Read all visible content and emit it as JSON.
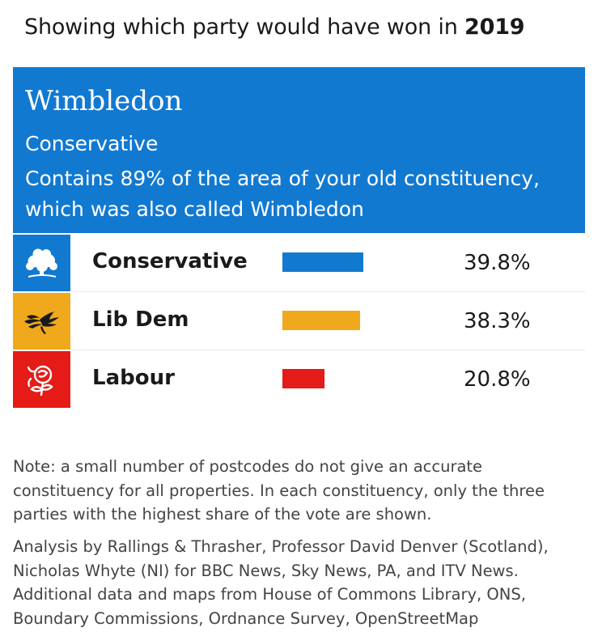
{
  "header": {
    "title_prefix": "Showing which party would have won in",
    "title_year": "2019"
  },
  "seat": {
    "name": "Wimbledon",
    "winner": "Conservative",
    "note": "Contains 89% of the area of your old constituency, which was also called Wimbledon",
    "banner_color": "#1279d1"
  },
  "chart_data": {
    "type": "bar",
    "categories": [
      "Conservative",
      "Lib Dem",
      "Labour"
    ],
    "values": [
      39.8,
      38.3,
      20.8
    ],
    "value_labels": [
      "39.8%",
      "38.3%",
      "20.8%"
    ],
    "colors": [
      "#1279d1",
      "#f0a81c",
      "#e41b17"
    ],
    "logos": [
      "conservative-tree-icon",
      "lib-dem-bird-icon",
      "labour-rose-icon"
    ],
    "xlim": [
      0,
      100
    ],
    "title": "",
    "xlabel": "",
    "ylabel": ""
  },
  "footer": {
    "note": "Note: a small number of postcodes do not give an accurate constituency for all properties. In each constituency, only the three parties with the highest share of the vote are shown.",
    "source": "Analysis by Rallings & Thrasher, Professor David Denver (Scotland), Nicholas Whyte (NI) for BBC News, Sky News, PA, and ITV News. Additional data and maps from House of Commons Library, ONS, Boundary Commissions, Ordnance Survey, OpenStreetMap"
  }
}
